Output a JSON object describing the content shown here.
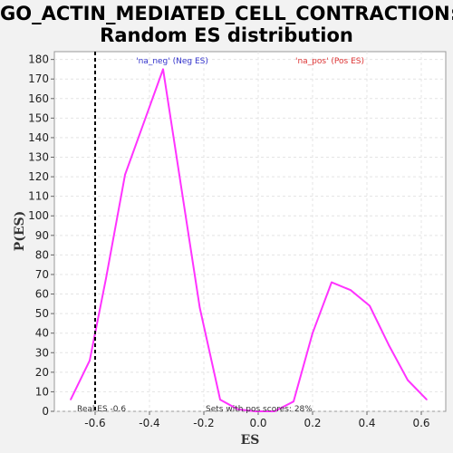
{
  "title_line1": "GO_ACTIN_MEDIATED_CELL_CONTRACTION:",
  "title_line2": "Random ES distribution",
  "chart_data": {
    "type": "line",
    "title": "GO_ACTIN_MEDIATED_CELL_CONTRACTION: Random ES distribution",
    "xlabel": "ES",
    "ylabel": "P(ES)",
    "xlim": [
      -0.75,
      0.69
    ],
    "ylim": [
      0,
      184
    ],
    "xticks": [
      -0.6,
      -0.4,
      -0.2,
      0.0,
      0.2,
      0.4,
      0.6
    ],
    "xtick_labels": [
      "-0.6",
      "-0.4",
      "-0.2",
      "0.0",
      "0.2",
      "0.4",
      "0.6"
    ],
    "yticks": [
      0,
      10,
      20,
      30,
      40,
      50,
      60,
      70,
      80,
      90,
      100,
      110,
      120,
      130,
      140,
      150,
      160,
      170,
      180
    ],
    "grid": true,
    "series": [
      {
        "color": "#ff33ff",
        "x": [
          -0.69,
          -0.62,
          -0.56,
          -0.49,
          -0.42,
          -0.35,
          -0.215,
          -0.14,
          -0.075,
          -0.01,
          0.06,
          0.13,
          0.2,
          0.27,
          0.34,
          0.41,
          0.48,
          0.55,
          0.62
        ],
        "y": [
          6,
          26,
          68,
          121,
          148,
          175,
          53,
          6,
          1,
          0,
          0,
          5,
          40,
          66,
          62,
          54,
          34,
          16,
          6
        ]
      }
    ],
    "real_es": -0.6,
    "annotations": {
      "neg_label": "'na_neg' (Neg ES)",
      "pos_label": "'na_pos' (Pos ES)",
      "real_es_label": "Real ES -0.6",
      "pos_scores_label": "Sets with pos scores: 28%"
    },
    "colors": {
      "line": "#ff33ff",
      "neg_label": "#3333cc",
      "pos_label": "#dd3333",
      "real_es_line": "#000000"
    }
  }
}
